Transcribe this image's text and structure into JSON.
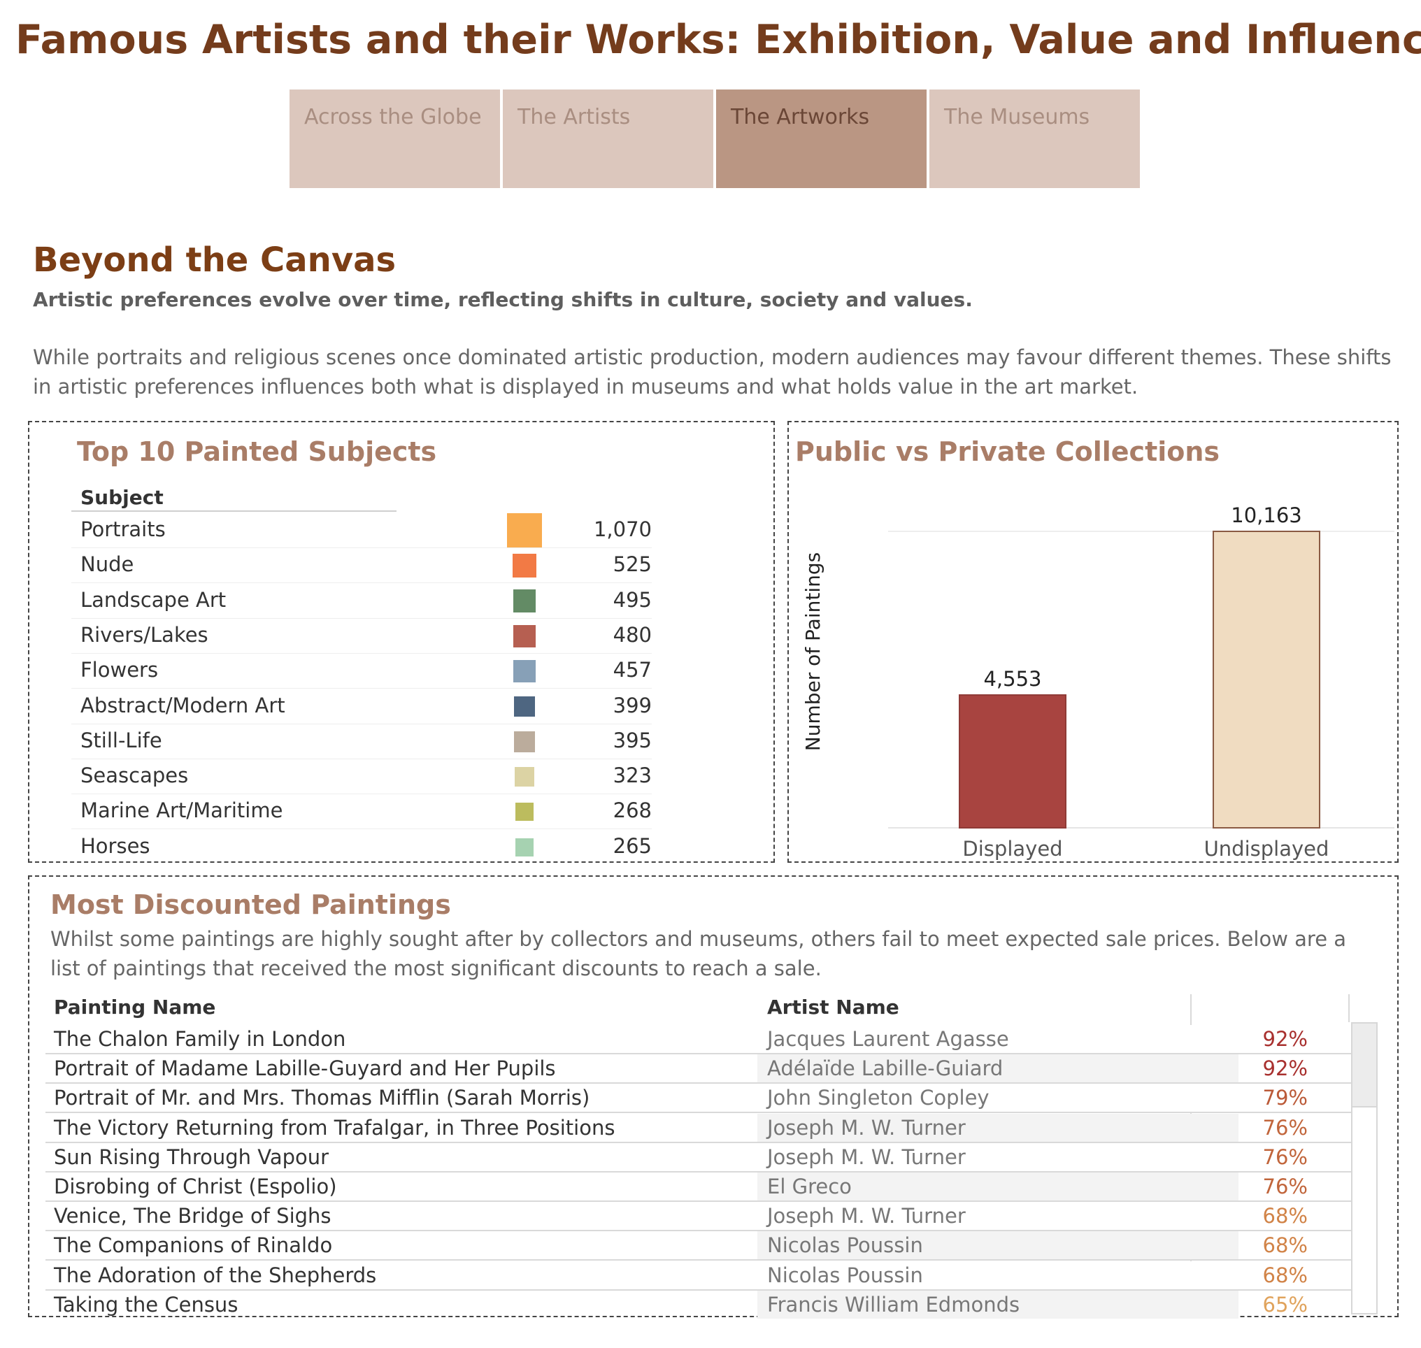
{
  "header": {
    "title": "Famous Artists and their Works: Exhibition, Value and Influence"
  },
  "tabs": [
    {
      "label": "Across the Globe",
      "active": false
    },
    {
      "label": "The Artists",
      "active": false
    },
    {
      "label": "The Artworks",
      "active": true
    },
    {
      "label": "The Museums",
      "active": false
    }
  ],
  "section": {
    "title": "Beyond the Canvas",
    "subtitle": "Artistic preferences evolve over time, reflecting shifts in culture, society and values.",
    "intro": "While portraits and religious scenes once dominated artistic production, modern audiences may favour different themes. These shifts in artistic preferences influences both what is displayed in museums and what holds value in the art market."
  },
  "colors": {
    "title": "#743c1c",
    "tab_inactive": "#dcc7bd",
    "tab_active": "#ba9683",
    "panel_title": "#a97d67",
    "displayed": "#a84440",
    "undisplayed": "#f0dcc1"
  },
  "chart_data": [
    {
      "type": "table",
      "title": "Top 10 Painted Subjects",
      "column_header": "Subject",
      "rows": [
        {
          "subject": "Portraits",
          "value": 1070,
          "label": "1,070",
          "color": "#f9ac4f"
        },
        {
          "subject": "Nude",
          "value": 525,
          "label": "525",
          "color": "#f27a45"
        },
        {
          "subject": "Landscape Art",
          "value": 495,
          "label": "495",
          "color": "#638b65"
        },
        {
          "subject": "Rivers/Lakes",
          "value": 480,
          "label": "480",
          "color": "#b65f51"
        },
        {
          "subject": "Flowers",
          "value": 457,
          "label": "457",
          "color": "#87a0b7"
        },
        {
          "subject": "Abstract/Modern Art",
          "value": 399,
          "label": "399",
          "color": "#4e6681"
        },
        {
          "subject": "Still-Life",
          "value": 395,
          "label": "395",
          "color": "#bbac9c"
        },
        {
          "subject": "Seascapes",
          "value": 323,
          "label": "323",
          "color": "#dcd3a4"
        },
        {
          "subject": "Marine Art/Maritime",
          "value": 268,
          "label": "268",
          "color": "#bcbc5e"
        },
        {
          "subject": "Horses",
          "value": 265,
          "label": "265",
          "color": "#a6d2b1"
        }
      ]
    },
    {
      "type": "bar",
      "title": "Public vs Private Collections",
      "categories": [
        "Displayed",
        "Undisplayed"
      ],
      "values": [
        4553,
        10163
      ],
      "labels": [
        "4,553",
        "10,163"
      ],
      "ylabel": "Number of Paintings",
      "ylim": [
        0,
        10163
      ],
      "grid": true
    }
  ],
  "discounted": {
    "title": "Most Discounted Paintings",
    "description": "Whilst some paintings are highly sought after by collectors and museums, others fail to meet expected sale prices. Below are a list of paintings that received the most significant discounts to reach a sale.",
    "columns": [
      "Painting Name",
      "Artist Name",
      ""
    ],
    "rows": [
      {
        "painting": "The Chalon Family in London",
        "artist": "Jacques Laurent Agasse",
        "discount": "92%",
        "color": "#a8302e"
      },
      {
        "painting": "Portrait of Madame Labille-Guyard and Her Pupils",
        "artist": "Adélaïde Labille-Guiard",
        "discount": "92%",
        "color": "#a8302e"
      },
      {
        "painting": "Portrait of Mr. and Mrs. Thomas Mifflin (Sarah Morris)",
        "artist": "John Singleton Copley",
        "discount": "79%",
        "color": "#bb5a38"
      },
      {
        "painting": "The Victory Returning from Trafalgar, in Three Positions",
        "artist": "Joseph M. W. Turner",
        "discount": "76%",
        "color": "#c1653b"
      },
      {
        "painting": "Sun Rising Through Vapour",
        "artist": "Joseph M. W. Turner",
        "discount": "76%",
        "color": "#c1653b"
      },
      {
        "painting": "Disrobing of Christ (Espolio)",
        "artist": "El Greco",
        "discount": "76%",
        "color": "#c1653b"
      },
      {
        "painting": "Venice, The Bridge of Sighs",
        "artist": "Joseph M. W. Turner",
        "discount": "68%",
        "color": "#d18347"
      },
      {
        "painting": "The Companions of Rinaldo",
        "artist": "Nicolas Poussin",
        "discount": "68%",
        "color": "#d18347"
      },
      {
        "painting": "The Adoration of the Shepherds",
        "artist": "Nicolas Poussin",
        "discount": "68%",
        "color": "#d18347"
      },
      {
        "painting": "Taking the Census",
        "artist": "Francis William Edmonds",
        "discount": "65%",
        "color": "#e0a35c"
      }
    ]
  }
}
